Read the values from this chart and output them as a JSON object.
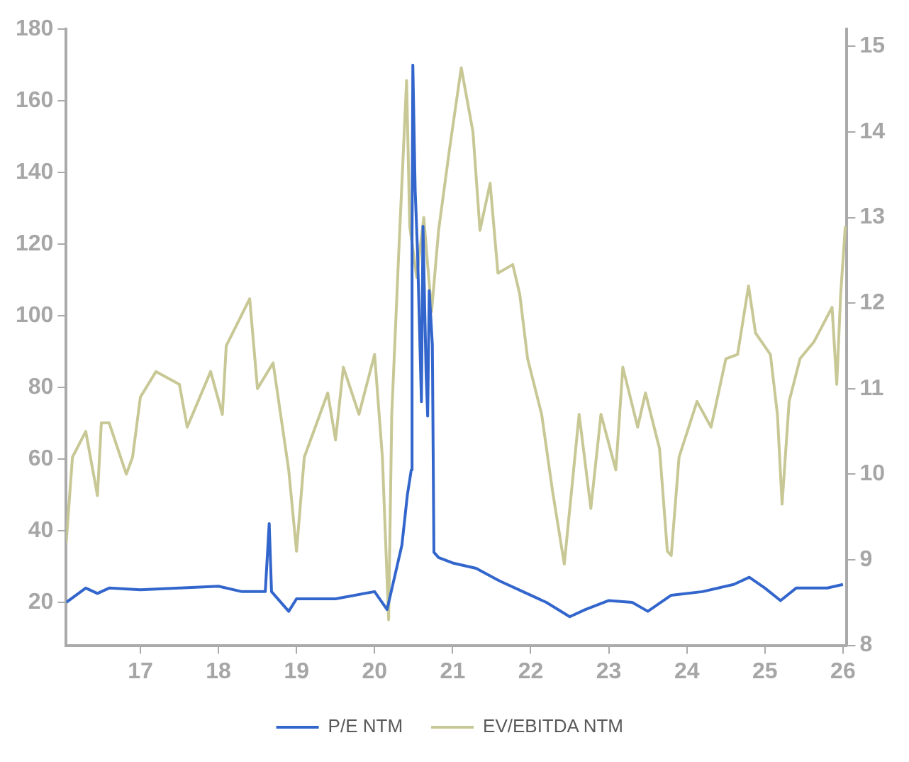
{
  "chart_data": {
    "type": "line",
    "xlim": [
      16.05,
      26.05
    ],
    "xticks": [
      17,
      18,
      19,
      20,
      21,
      22,
      23,
      24,
      25,
      26
    ],
    "ylim": [
      8,
      180
    ],
    "yticks": [
      20,
      40,
      60,
      80,
      100,
      120,
      140,
      160,
      180
    ],
    "y2lim": [
      8,
      15.2
    ],
    "y2ticks": [
      8,
      9,
      10,
      11,
      12,
      13,
      14,
      15
    ],
    "grid": false,
    "legend": "bottom",
    "marker": "none",
    "line_style": "solid",
    "series": [
      {
        "name": "P/E NTM",
        "color": "#3366cc",
        "x": [
          16.05,
          16.3,
          16.45,
          16.6,
          17.0,
          17.5,
          18.0,
          18.3,
          18.6,
          18.65,
          18.68,
          18.9,
          19.0,
          19.5,
          20.0,
          20.16,
          20.35,
          20.42,
          20.47,
          20.48,
          20.49,
          20.52,
          20.55,
          20.6,
          20.62,
          20.66,
          20.68,
          20.7,
          20.74,
          20.76,
          20.82,
          21.0,
          21.3,
          21.6,
          21.9,
          22.2,
          22.5,
          22.7,
          23.0,
          23.3,
          23.5,
          23.8,
          24.2,
          24.6,
          24.8,
          25.0,
          25.2,
          25.4,
          25.8,
          26.0
        ],
        "values": [
          20,
          24,
          22.5,
          24,
          23.5,
          24,
          24.5,
          23,
          23,
          42,
          23,
          17.5,
          21,
          21,
          23,
          18,
          36,
          50,
          57,
          122,
          170,
          135,
          118,
          76,
          125,
          84,
          72,
          107,
          92,
          34,
          32.5,
          31,
          29.5,
          26,
          23,
          20,
          16,
          18,
          20.5,
          20,
          17.5,
          22,
          23,
          25,
          27,
          24,
          20.5,
          24,
          24,
          25
        ]
      },
      {
        "name": "EV/EBITDA NTM",
        "color": "#c8c896",
        "axis": "y2",
        "x": [
          16.05,
          16.13,
          16.3,
          16.45,
          16.5,
          16.6,
          16.82,
          16.9,
          17.0,
          17.2,
          17.5,
          17.6,
          17.9,
          18.05,
          18.1,
          18.4,
          18.5,
          18.7,
          18.9,
          19.0,
          19.1,
          19.4,
          19.5,
          19.6,
          19.8,
          20.0,
          20.1,
          20.18,
          20.22,
          20.31,
          20.41,
          20.45,
          20.54,
          20.63,
          20.73,
          20.82,
          20.96,
          21.11,
          21.26,
          21.35,
          21.48,
          21.58,
          21.77,
          21.86,
          21.96,
          22.14,
          22.28,
          22.43,
          22.62,
          22.77,
          22.9,
          23.09,
          23.18,
          23.37,
          23.47,
          23.65,
          23.75,
          23.8,
          23.9,
          24.13,
          24.31,
          24.5,
          24.65,
          24.79,
          24.88,
          25.07,
          25.16,
          25.22,
          25.31,
          25.45,
          25.63,
          25.86,
          25.92,
          25.97,
          26.03
        ],
        "values": [
          9.2,
          10.2,
          10.5,
          9.75,
          10.6,
          10.6,
          10.0,
          10.2,
          10.9,
          11.2,
          11.05,
          10.55,
          11.2,
          10.7,
          11.5,
          12.05,
          11.0,
          11.3,
          10.05,
          9.1,
          10.2,
          10.95,
          10.4,
          11.25,
          10.7,
          11.4,
          10.2,
          8.3,
          10.7,
          12.6,
          14.6,
          12.9,
          12.3,
          13.0,
          11.9,
          12.85,
          13.8,
          14.75,
          14.0,
          12.85,
          13.4,
          12.35,
          12.45,
          12.1,
          11.35,
          10.7,
          9.8,
          8.95,
          10.7,
          9.6,
          10.7,
          10.05,
          11.25,
          10.55,
          10.95,
          10.3,
          9.1,
          9.05,
          10.2,
          10.85,
          10.55,
          11.35,
          11.4,
          12.2,
          11.65,
          11.4,
          10.7,
          9.65,
          10.85,
          11.35,
          11.55,
          11.95,
          11.05,
          12.1,
          12.9
        ]
      }
    ]
  }
}
